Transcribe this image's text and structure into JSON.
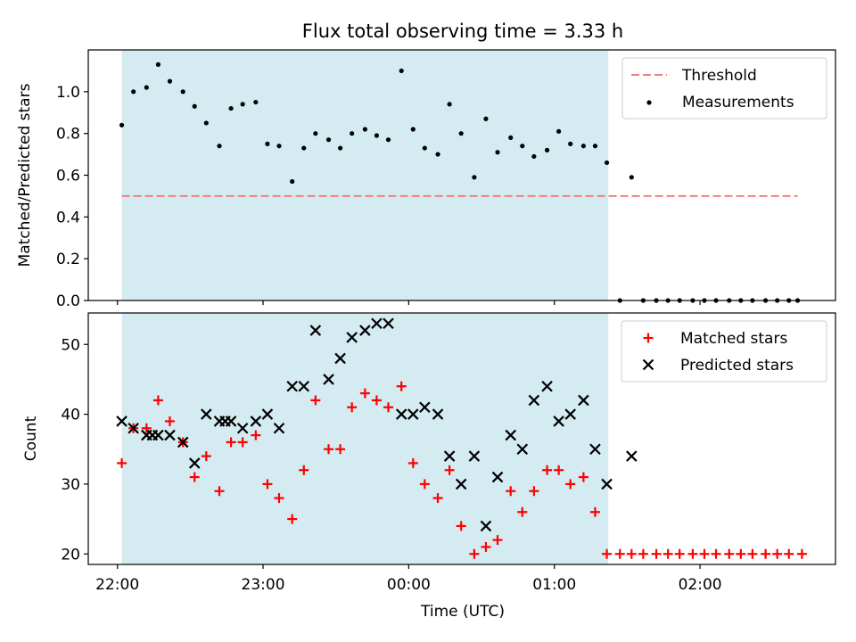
{
  "figure": {
    "title": "Flux total observing time = 3.33 h",
    "xlabel": "Time (UTC)"
  },
  "colors": {
    "shade": "#d4ebf1",
    "threshold": "#f08080",
    "matched": "#ff0000",
    "predicted": "#000000",
    "measurement": "#000000"
  },
  "chart_data": [
    {
      "type": "scatter",
      "title": "Flux total observing time = 3.33 h",
      "ylabel": "Matched/Predicted stars",
      "xlabel": "",
      "x_unit": "hours since 22:00 UTC",
      "x_tick_labels": [
        "22:00",
        "23:00",
        "00:00",
        "01:00",
        "02:00"
      ],
      "x_ticks": [
        0,
        1,
        2,
        3,
        4
      ],
      "xlim": [
        -0.2,
        4.93
      ],
      "ylim": [
        0,
        1.2
      ],
      "y_ticks": [
        0.0,
        0.2,
        0.4,
        0.6,
        0.8,
        1.0
      ],
      "y_tick_labels": [
        "0.0",
        "0.2",
        "0.4",
        "0.6",
        "0.8",
        "1.0"
      ],
      "shaded_span": [
        0.03,
        3.37
      ],
      "legend_position": "top-right",
      "threshold": {
        "name": "Threshold",
        "y": 0.5,
        "x_range": [
          0.03,
          4.67
        ]
      },
      "series": [
        {
          "name": "Measurements",
          "x": [
            0.03,
            0.11,
            0.2,
            0.28,
            0.36,
            0.45,
            0.53,
            0.61,
            0.7,
            0.78,
            0.86,
            0.95,
            1.03,
            1.11,
            1.2,
            1.28,
            1.36,
            1.45,
            1.53,
            1.61,
            1.7,
            1.78,
            1.86,
            1.95,
            2.03,
            2.11,
            2.2,
            2.28,
            2.36,
            2.45,
            2.53,
            2.61,
            2.7,
            2.78,
            2.86,
            2.95,
            3.03,
            3.11,
            3.2,
            3.28,
            3.36,
            3.45,
            3.53,
            3.61,
            3.7,
            3.78,
            3.86,
            3.95,
            4.03,
            4.11,
            4.2,
            4.28,
            4.36,
            4.45,
            4.53,
            4.61,
            4.67
          ],
          "y": [
            0.84,
            1.0,
            1.02,
            1.13,
            1.05,
            1.0,
            0.93,
            0.85,
            0.74,
            0.92,
            0.94,
            0.95,
            0.75,
            0.74,
            0.57,
            0.73,
            0.8,
            0.77,
            0.73,
            0.8,
            0.82,
            0.79,
            0.77,
            1.1,
            0.82,
            0.73,
            0.7,
            0.94,
            0.8,
            0.59,
            0.87,
            0.71,
            0.78,
            0.74,
            0.69,
            0.72,
            0.81,
            0.75,
            0.74,
            0.74,
            0.66,
            0.0,
            0.59,
            0.0,
            0.0,
            0.0,
            0.0,
            0.0,
            0.0,
            0.0,
            0.0,
            0.0,
            0.0,
            0.0,
            0.0,
            0.0,
            0.0
          ]
        }
      ]
    },
    {
      "type": "scatter",
      "title": "",
      "ylabel": "Count",
      "xlabel": "Time (UTC)",
      "x_unit": "hours since 22:00 UTC",
      "x_tick_labels": [
        "22:00",
        "23:00",
        "00:00",
        "01:00",
        "02:00"
      ],
      "x_ticks": [
        0,
        1,
        2,
        3,
        4
      ],
      "xlim": [
        -0.2,
        4.93
      ],
      "ylim": [
        18.5,
        54.5
      ],
      "y_ticks": [
        20,
        30,
        40,
        50
      ],
      "y_tick_labels": [
        "20",
        "30",
        "40",
        "50"
      ],
      "shaded_span": [
        0.03,
        3.37
      ],
      "legend_position": "top-right",
      "series": [
        {
          "name": "Matched stars",
          "x": [
            0.03,
            0.11,
            0.2,
            0.28,
            0.36,
            0.45,
            0.53,
            0.61,
            0.7,
            0.78,
            0.86,
            0.95,
            1.03,
            1.11,
            1.2,
            1.28,
            1.36,
            1.45,
            1.53,
            1.61,
            1.7,
            1.78,
            1.86,
            1.95,
            2.03,
            2.11,
            2.2,
            2.28,
            2.36,
            2.45,
            2.53,
            2.61,
            2.7,
            2.78,
            2.86,
            2.95,
            3.03,
            3.11,
            3.2,
            3.28,
            3.36,
            3.45,
            3.53,
            3.61,
            3.7,
            3.78,
            3.86,
            3.95,
            4.03,
            4.11,
            4.2,
            4.28,
            4.36,
            4.45,
            4.53,
            4.61,
            4.7
          ],
          "y": [
            33,
            38,
            38,
            42,
            39,
            36,
            31,
            34,
            29,
            36,
            36,
            37,
            30,
            28,
            25,
            32,
            42,
            35,
            35,
            41,
            43,
            42,
            41,
            44,
            33,
            30,
            28,
            32,
            24,
            20,
            21,
            22,
            29,
            26,
            29,
            32,
            32,
            30,
            31,
            26,
            20,
            20,
            20,
            20,
            20,
            20,
            20,
            20,
            20,
            20,
            20,
            20,
            20,
            20,
            20,
            20,
            20
          ],
          "marker": "+"
        },
        {
          "name": "Predicted stars",
          "x": [
            0.03,
            0.11,
            0.2,
            0.24,
            0.28,
            0.36,
            0.45,
            0.53,
            0.61,
            0.7,
            0.74,
            0.78,
            0.86,
            0.95,
            1.03,
            1.11,
            1.2,
            1.28,
            1.36,
            1.45,
            1.53,
            1.61,
            1.7,
            1.78,
            1.86,
            1.95,
            2.03,
            2.11,
            2.2,
            2.28,
            2.36,
            2.45,
            2.53,
            2.61,
            2.7,
            2.78,
            2.86,
            2.95,
            3.03,
            3.11,
            3.2,
            3.28,
            3.36,
            3.53
          ],
          "y": [
            39,
            38,
            37,
            37,
            37,
            37,
            36,
            33,
            40,
            39,
            39,
            39,
            38,
            39,
            40,
            38,
            44,
            44,
            52,
            45,
            48,
            51,
            52,
            53,
            53,
            40,
            40,
            41,
            40,
            34,
            30,
            34,
            24,
            31,
            37,
            35,
            42,
            44,
            39,
            40,
            42,
            35,
            30,
            34
          ],
          "marker": "x"
        }
      ]
    }
  ]
}
